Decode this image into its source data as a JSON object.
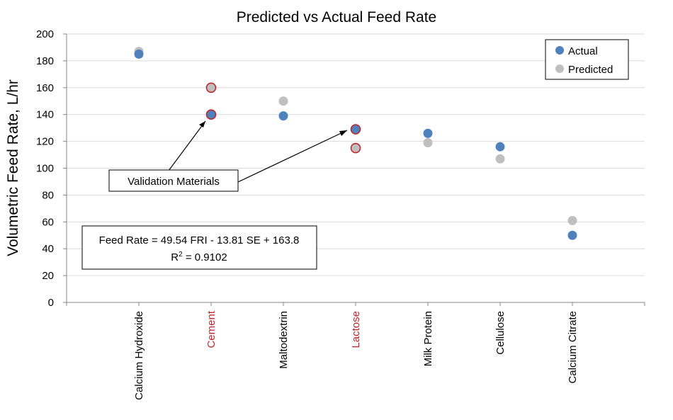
{
  "chart_data": {
    "type": "scatter",
    "title": "Predicted vs Actual Feed Rate",
    "xlabel": "",
    "ylabel": "Volumetric Feed Rate, L/hr",
    "ylim": [
      0,
      200
    ],
    "yticks": [
      0,
      20,
      40,
      60,
      80,
      100,
      120,
      140,
      160,
      180,
      200
    ],
    "grid": "horizontal",
    "legend_position": "top-right",
    "categories": [
      "Calcium Hydroxide",
      "Cement",
      "Maltodextrin",
      "Lactose",
      "Milk Protein",
      "Cellulose",
      "Calcium Citrate"
    ],
    "validation_categories": [
      "Cement",
      "Lactose"
    ],
    "series": [
      {
        "name": "Actual",
        "color": "#4f81bd",
        "values": [
          185,
          140,
          139,
          129,
          126,
          116,
          50
        ]
      },
      {
        "name": "Predicted",
        "color": "#bfbfbf",
        "values": [
          187,
          160,
          150,
          115,
          119,
          107,
          61
        ]
      }
    ],
    "colors": {
      "validation_label": "#c0272d",
      "validation_outline": "#c0272d",
      "axis": "#868686",
      "grid": "#d9d9d9"
    },
    "annotations": {
      "validation_label": "Validation Materials",
      "equation_line1": "Feed Rate = 49.54 FRI - 13.81 SE + 163.8",
      "r2_prefix": "R",
      "r2_sup": "2",
      "r2_value": " = 0.9102"
    }
  }
}
